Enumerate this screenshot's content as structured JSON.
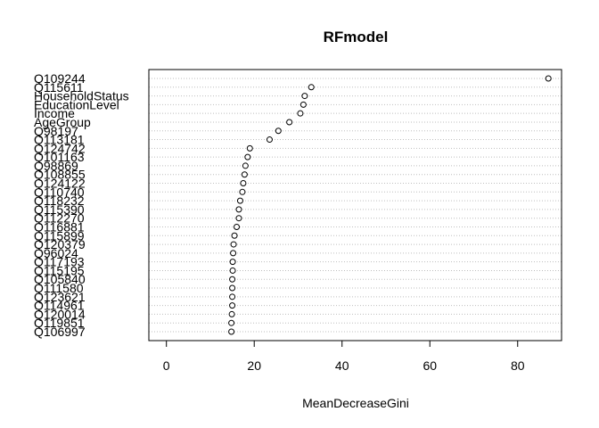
{
  "chart_data": {
    "type": "scatter",
    "title": "RFmodel",
    "xlabel": "MeanDecreaseGini",
    "ylabel": "",
    "xlim": [
      -4,
      90
    ],
    "xticks": [
      0,
      20,
      40,
      60,
      80
    ],
    "grid": true,
    "categories": [
      "Q109244",
      "Q115611",
      "HouseholdStatus",
      "EducationLevel",
      "Income",
      "AgeGroup",
      "Q98197",
      "Q113181",
      "Q124742",
      "Q101163",
      "Q98869",
      "Q108855",
      "Q124122",
      "Q110740",
      "Q118232",
      "Q115390",
      "Q112270",
      "Q116881",
      "Q115899",
      "Q120379",
      "Q96024",
      "Q117193",
      "Q115195",
      "Q105840",
      "Q111580",
      "Q123621",
      "Q114961",
      "Q120014",
      "Q119851",
      "Q106997"
    ],
    "values": [
      87.0,
      33.0,
      31.5,
      31.2,
      30.5,
      28.0,
      25.5,
      23.5,
      19.0,
      18.5,
      18.0,
      17.8,
      17.5,
      17.3,
      16.8,
      16.5,
      16.5,
      16.0,
      15.5,
      15.3,
      15.2,
      15.1,
      15.1,
      15.0,
      15.0,
      15.0,
      15.0,
      14.9,
      14.8,
      14.8
    ]
  }
}
